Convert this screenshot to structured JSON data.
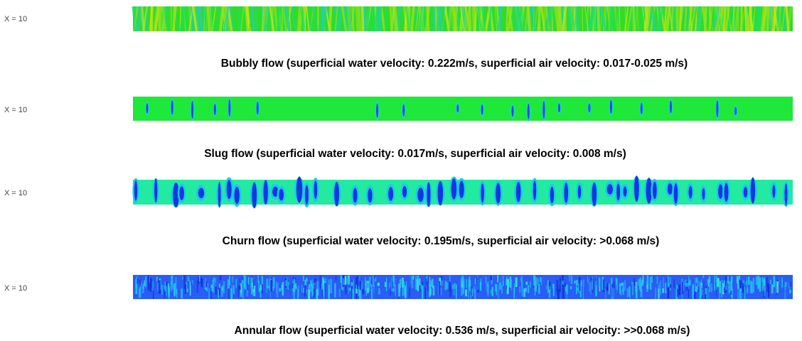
{
  "panels": [
    {
      "label": "X = 10",
      "caption": "Bubbly flow (superficial water velocity: 0.222m/s, superficial air velocity: 0.017-0.025 m/s)"
    },
    {
      "label": "X = 10",
      "caption": "Slug flow (superficial water velocity: 0.017m/s, superficial air velocity: 0.008 m/s)"
    },
    {
      "label": "X = 10",
      "caption": "Churn flow (superficial water velocity: 0.195m/s, superficial air velocity: >0.068 m/s)"
    },
    {
      "label": "X = 10",
      "caption": "Annular flow (superficial water velocity: 0.536 m/s, superficial air velocity: >>0.068 m/s)"
    }
  ]
}
